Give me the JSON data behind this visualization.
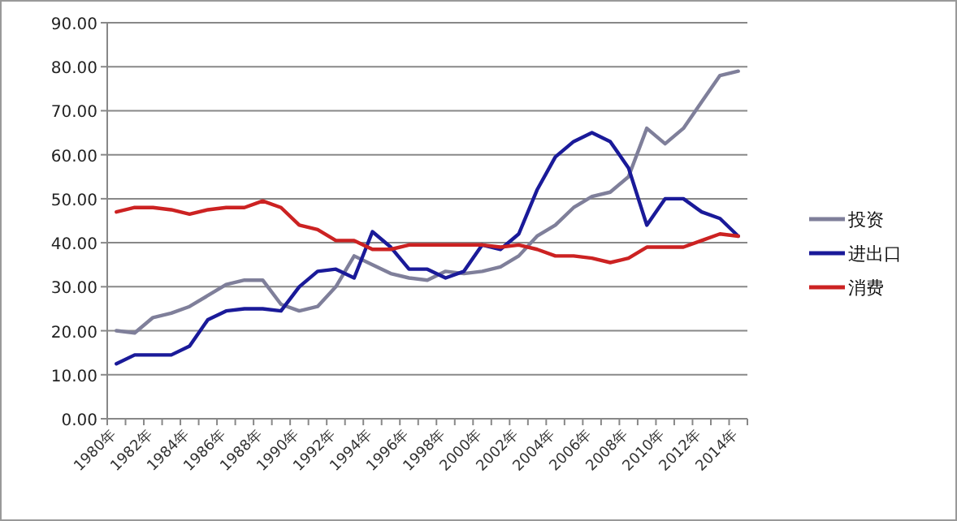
{
  "chart_data": {
    "type": "line",
    "categories": [
      "1980年",
      null,
      "1982年",
      null,
      "1984年",
      null,
      "1986年",
      null,
      "1988年",
      null,
      "1990年",
      null,
      "1992年",
      null,
      "1994年",
      null,
      "1996年",
      null,
      "1998年",
      null,
      "2000年",
      null,
      "2002年",
      null,
      "2004年",
      null,
      "2006年",
      null,
      "2008年",
      null,
      "2010年",
      null,
      "2012年",
      null,
      "2014年"
    ],
    "series": [
      {
        "name": "投资",
        "color": "#7f7f9a",
        "values": [
          20,
          19.5,
          23,
          24,
          25.5,
          28,
          30.5,
          31.5,
          31.5,
          26,
          24.5,
          25.5,
          30,
          37,
          35,
          33,
          32,
          31.5,
          33.5,
          33,
          33.5,
          34.5,
          37,
          41.5,
          44,
          48,
          50.5,
          51.5,
          55,
          66,
          62.5,
          66,
          72,
          78,
          79
        ]
      },
      {
        "name": "进出口",
        "color": "#1a1a99",
        "values": [
          12.5,
          14.5,
          14.5,
          14.5,
          16.5,
          22.5,
          24.5,
          25,
          25,
          24.5,
          30,
          33.5,
          34,
          32,
          42.5,
          39,
          34,
          34,
          32,
          33.5,
          39.5,
          38.5,
          42,
          52,
          59.5,
          63,
          65,
          63,
          57,
          44,
          50,
          50,
          47,
          45.5,
          41.5
        ]
      },
      {
        "name": "消费",
        "color": "#cc2222",
        "values": [
          47,
          48,
          48,
          47.5,
          46.5,
          47.5,
          48,
          48,
          49.5,
          48,
          44,
          43,
          40.5,
          40.5,
          38.5,
          38.5,
          39.5,
          39.5,
          39.5,
          39.5,
          39.5,
          39,
          39.5,
          38.5,
          37,
          37,
          36.5,
          35.5,
          36.5,
          39,
          39,
          39,
          40.5,
          42,
          41.5
        ]
      }
    ],
    "ylim": [
      0,
      90
    ],
    "yticks": [
      {
        "value": 0,
        "label": "0.00"
      },
      {
        "value": 10,
        "label": "10.00"
      },
      {
        "value": 20,
        "label": "20.00"
      },
      {
        "value": 30,
        "label": "30.00"
      },
      {
        "value": 40,
        "label": "40.00"
      },
      {
        "value": 50,
        "label": "50.00"
      },
      {
        "value": 60,
        "label": "60.00"
      },
      {
        "value": 70,
        "label": "70.00"
      },
      {
        "value": 80,
        "label": "80.00"
      },
      {
        "value": 90,
        "label": "90.00"
      }
    ],
    "grid": "y",
    "legend": "right",
    "marker": "none",
    "line_style": "solid"
  }
}
